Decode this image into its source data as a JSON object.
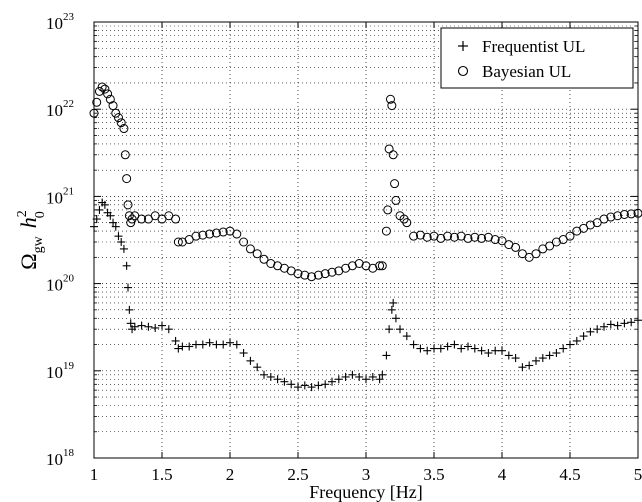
{
  "chart_data": {
    "type": "scatter",
    "xlabel": "Frequency [Hz]",
    "ylabel": {
      "main": "Ω",
      "main_sub": "gw",
      "h": "h",
      "h_sup": "2",
      "h_sub": "0"
    },
    "xlim": [
      1,
      5
    ],
    "ylim": [
      1e+18,
      1e+23
    ],
    "yscale": "log",
    "grid": true,
    "legend_position": "top-right",
    "x_ticks": [
      "1",
      "1.5",
      "2",
      "2.5",
      "3",
      "3.5",
      "4",
      "4.5",
      "5"
    ],
    "y_ticks": [
      {
        "base": "10",
        "exp": "18"
      },
      {
        "base": "10",
        "exp": "19"
      },
      {
        "base": "10",
        "exp": "20"
      },
      {
        "base": "10",
        "exp": "21"
      },
      {
        "base": "10",
        "exp": "22"
      },
      {
        "base": "10",
        "exp": "23"
      }
    ],
    "series": [
      {
        "name": "Frequentist UL",
        "marker": "plus",
        "x": [
          1.0,
          1.02,
          1.04,
          1.06,
          1.08,
          1.1,
          1.12,
          1.14,
          1.16,
          1.18,
          1.2,
          1.22,
          1.24,
          1.25,
          1.26,
          1.27,
          1.28,
          1.3,
          1.35,
          1.4,
          1.45,
          1.5,
          1.55,
          1.6,
          1.62,
          1.65,
          1.7,
          1.75,
          1.8,
          1.85,
          1.9,
          1.95,
          2.0,
          2.05,
          2.1,
          2.15,
          2.2,
          2.25,
          2.3,
          2.35,
          2.4,
          2.45,
          2.5,
          2.55,
          2.6,
          2.65,
          2.7,
          2.75,
          2.8,
          2.85,
          2.9,
          2.95,
          3.0,
          3.05,
          3.1,
          3.12,
          3.15,
          3.17,
          3.19,
          3.2,
          3.22,
          3.25,
          3.3,
          3.35,
          3.4,
          3.45,
          3.5,
          3.55,
          3.6,
          3.65,
          3.7,
          3.75,
          3.8,
          3.85,
          3.9,
          3.95,
          4.0,
          4.05,
          4.1,
          4.15,
          4.2,
          4.25,
          4.3,
          4.35,
          4.4,
          4.45,
          4.5,
          4.55,
          4.6,
          4.65,
          4.7,
          4.75,
          4.8,
          4.85,
          4.9,
          4.95,
          5.0
        ],
        "y": [
          4.5e+20,
          5.5e+20,
          7e+20,
          8.5e+20,
          8e+20,
          6.5e+20,
          6e+20,
          5e+20,
          4.5e+20,
          3.5e+20,
          3e+20,
          2.5e+20,
          1.6e+20,
          9e+19,
          5e+19,
          3.5e+19,
          3e+19,
          3.2e+19,
          3.3e+19,
          3.2e+19,
          3.1e+19,
          3.3e+19,
          3e+19,
          2.2e+19,
          1.8e+19,
          1.9e+19,
          1.9e+19,
          2e+19,
          2e+19,
          2.1e+19,
          2e+19,
          2e+19,
          2.1e+19,
          2e+19,
          1.6e+19,
          1.3e+19,
          1.1e+19,
          9e+18,
          8.5e+18,
          8e+18,
          7.5e+18,
          7e+18,
          6.5e+18,
          6.8e+18,
          6.5e+18,
          6.8e+18,
          7e+18,
          7.5e+18,
          8e+18,
          8.5e+18,
          9e+18,
          8.5e+18,
          8e+18,
          8.5e+18,
          8e+18,
          9e+18,
          1.5e+19,
          3e+19,
          5e+19,
          6e+19,
          4e+19,
          3e+19,
          2.5e+19,
          2e+19,
          1.8e+19,
          1.7e+19,
          1.8e+19,
          1.8e+19,
          1.9e+19,
          2e+19,
          1.8e+19,
          1.9e+19,
          1.8e+19,
          1.7e+19,
          1.6e+19,
          1.7e+19,
          1.7e+19,
          1.5e+19,
          1.4e+19,
          1.1e+19,
          1.15e+19,
          1.3e+19,
          1.4e+19,
          1.5e+19,
          1.6e+19,
          1.8e+19,
          2e+19,
          2.2e+19,
          2.5e+19,
          2.8e+19,
          3e+19,
          3.2e+19,
          3.4e+19,
          3.3e+19,
          3.5e+19,
          3.6e+19,
          3.8e+19
        ]
      },
      {
        "name": "Bayesian UL",
        "marker": "circle",
        "x": [
          1.0,
          1.02,
          1.04,
          1.06,
          1.08,
          1.1,
          1.12,
          1.14,
          1.16,
          1.18,
          1.2,
          1.22,
          1.23,
          1.24,
          1.25,
          1.26,
          1.27,
          1.28,
          1.3,
          1.35,
          1.4,
          1.45,
          1.5,
          1.55,
          1.6,
          1.62,
          1.65,
          1.7,
          1.75,
          1.8,
          1.85,
          1.9,
          1.95,
          2.0,
          2.05,
          2.1,
          2.15,
          2.2,
          2.25,
          2.3,
          2.35,
          2.4,
          2.45,
          2.5,
          2.55,
          2.6,
          2.65,
          2.7,
          2.75,
          2.8,
          2.85,
          2.9,
          2.95,
          3.0,
          3.05,
          3.1,
          3.12,
          3.15,
          3.16,
          3.17,
          3.18,
          3.19,
          3.2,
          3.21,
          3.22,
          3.25,
          3.28,
          3.3,
          3.35,
          3.4,
          3.45,
          3.5,
          3.55,
          3.6,
          3.65,
          3.7,
          3.75,
          3.8,
          3.85,
          3.9,
          3.95,
          4.0,
          4.05,
          4.1,
          4.15,
          4.2,
          4.25,
          4.3,
          4.35,
          4.4,
          4.45,
          4.5,
          4.55,
          4.6,
          4.65,
          4.7,
          4.75,
          4.8,
          4.85,
          4.9,
          4.95,
          5.0
        ],
        "y": [
          9e+21,
          1.2e+22,
          1.6e+22,
          1.8e+22,
          1.7e+22,
          1.5e+22,
          1.3e+22,
          1.1e+22,
          9e+21,
          8e+21,
          7e+21,
          6e+21,
          3e+21,
          1.6e+21,
          8e+20,
          6e+20,
          5e+20,
          5.5e+20,
          6e+20,
          5.5e+20,
          5.5e+20,
          6e+20,
          5.5e+20,
          6e+20,
          5.5e+20,
          3e+20,
          3e+20,
          3.2e+20,
          3.5e+20,
          3.6e+20,
          3.7e+20,
          3.8e+20,
          3.9e+20,
          4e+20,
          3.7e+20,
          3e+20,
          2.5e+20,
          2.2e+20,
          1.9e+20,
          1.7e+20,
          1.6e+20,
          1.5e+20,
          1.4e+20,
          1.3e+20,
          1.25e+20,
          1.2e+20,
          1.25e+20,
          1.3e+20,
          1.35e+20,
          1.4e+20,
          1.5e+20,
          1.6e+20,
          1.7e+20,
          1.6e+20,
          1.5e+20,
          1.6e+20,
          1.6e+20,
          4e+20,
          7e+20,
          3.5e+21,
          1.3e+22,
          1.1e+22,
          3e+21,
          1.4e+21,
          9e+20,
          6e+20,
          5.5e+20,
          5e+20,
          3.5e+20,
          3.6e+20,
          3.4e+20,
          3.5e+20,
          3.3e+20,
          3.5e+20,
          3.4e+20,
          3.5e+20,
          3.3e+20,
          3.4e+20,
          3.3e+20,
          3.4e+20,
          3.2e+20,
          3.1e+20,
          2.8e+20,
          2.6e+20,
          2.2e+20,
          2e+20,
          2.2e+20,
          2.5e+20,
          2.7e+20,
          3e+20,
          3.2e+20,
          3.5e+20,
          4e+20,
          4.3e+20,
          4.7e+20,
          5e+20,
          5.5e+20,
          5.8e+20,
          6e+20,
          6.2e+20,
          6.3e+20,
          6.4e+20
        ]
      }
    ]
  }
}
